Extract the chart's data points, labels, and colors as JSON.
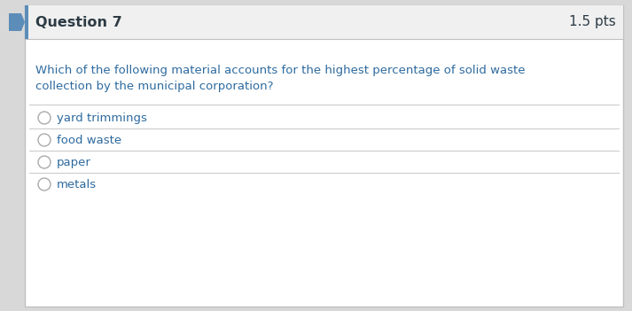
{
  "question_label": "Question 7",
  "points_label": "1.5 pts",
  "question_text_line1": "Which of the following material accounts for the highest percentage of solid waste",
  "question_text_line2": "collection by the municipal corporation?",
  "options": [
    "yard trimmings",
    "food waste",
    "paper",
    "metals"
  ],
  "header_bg": "#f0f0f0",
  "body_bg": "#ffffff",
  "outer_bg": "#d8d8d8",
  "border_color": "#c0c0c0",
  "header_text_color": "#2d3b45",
  "question_text_color": "#2d6a9f",
  "option_text_color": "#2d6a9f",
  "circle_edge_color": "#aaaaaa",
  "divider_color": "#cccccc",
  "points_color": "#2d3b45",
  "left_accent_color": "#5b8db8",
  "fig_width": 7.13,
  "fig_height": 3.51,
  "dpi": 100
}
